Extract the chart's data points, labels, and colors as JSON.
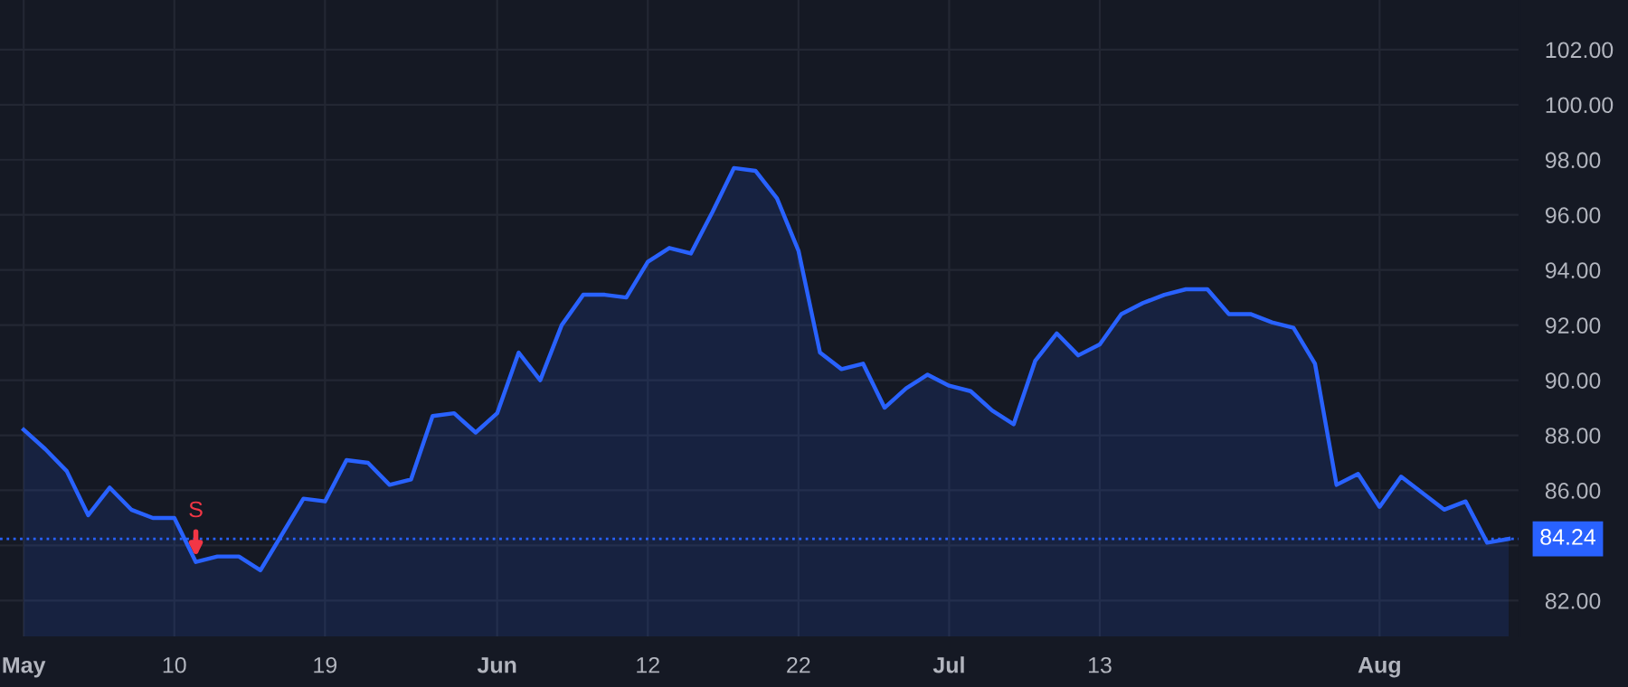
{
  "chart_data": {
    "type": "area",
    "categories": [
      "May",
      null,
      null,
      null,
      null,
      null,
      null,
      "10",
      null,
      null,
      null,
      null,
      null,
      null,
      "19",
      null,
      null,
      null,
      null,
      null,
      null,
      null,
      "Jun",
      null,
      null,
      null,
      null,
      null,
      null,
      "12",
      null,
      null,
      null,
      null,
      null,
      null,
      "22",
      null,
      null,
      null,
      null,
      null,
      null,
      "Jul",
      null,
      null,
      null,
      null,
      null,
      null,
      "13",
      null,
      null,
      null,
      null,
      null,
      null,
      null,
      null,
      null,
      null,
      null,
      null,
      "Aug",
      null,
      null,
      null,
      null,
      null,
      null
    ],
    "series": [
      {
        "color": "#2962ff",
        "values": [
          88.2,
          87.5,
          86.7,
          85.1,
          86.1,
          85.3,
          85.0,
          85.0,
          83.4,
          83.6,
          83.6,
          83.1,
          84.4,
          85.7,
          85.6,
          87.1,
          87.0,
          86.2,
          86.4,
          88.7,
          88.8,
          88.1,
          88.8,
          91.0,
          90.0,
          92.0,
          93.1,
          93.1,
          93.0,
          94.3,
          94.8,
          94.6,
          96.1,
          97.7,
          97.6,
          96.6,
          94.7,
          91.0,
          90.4,
          90.6,
          89.0,
          89.7,
          90.2,
          89.8,
          89.6,
          88.9,
          88.4,
          90.7,
          91.7,
          90.9,
          91.3,
          92.4,
          92.8,
          93.1,
          93.3,
          93.3,
          92.4,
          92.4,
          92.1,
          91.9,
          90.6,
          86.2,
          86.6,
          85.4,
          86.5,
          85.9,
          85.3,
          85.6,
          84.1,
          84.24
        ]
      }
    ],
    "ylim": [
      80.7,
      103.8
    ],
    "yticks": [
      {
        "value": 82,
        "label": "82.00"
      },
      {
        "value": 84,
        "label": null
      },
      {
        "value": 86,
        "label": "86.00"
      },
      {
        "value": 88,
        "label": "88.00"
      },
      {
        "value": 90,
        "label": "90.00"
      },
      {
        "value": 92,
        "label": "92.00"
      },
      {
        "value": 94,
        "label": "94.00"
      },
      {
        "value": 96,
        "label": "96.00"
      },
      {
        "value": 98,
        "label": "98.00"
      },
      {
        "value": 100,
        "label": "100.00"
      },
      {
        "value": 102,
        "label": "102.00"
      }
    ],
    "ref_lines": [
      {
        "axis": "y",
        "value": 84.24,
        "label": "84.24",
        "color": "#2962ff",
        "line_style": "dotted"
      }
    ],
    "annotations": [
      {
        "text": "S",
        "y": 83.4
      }
    ],
    "grid": true
  }
}
